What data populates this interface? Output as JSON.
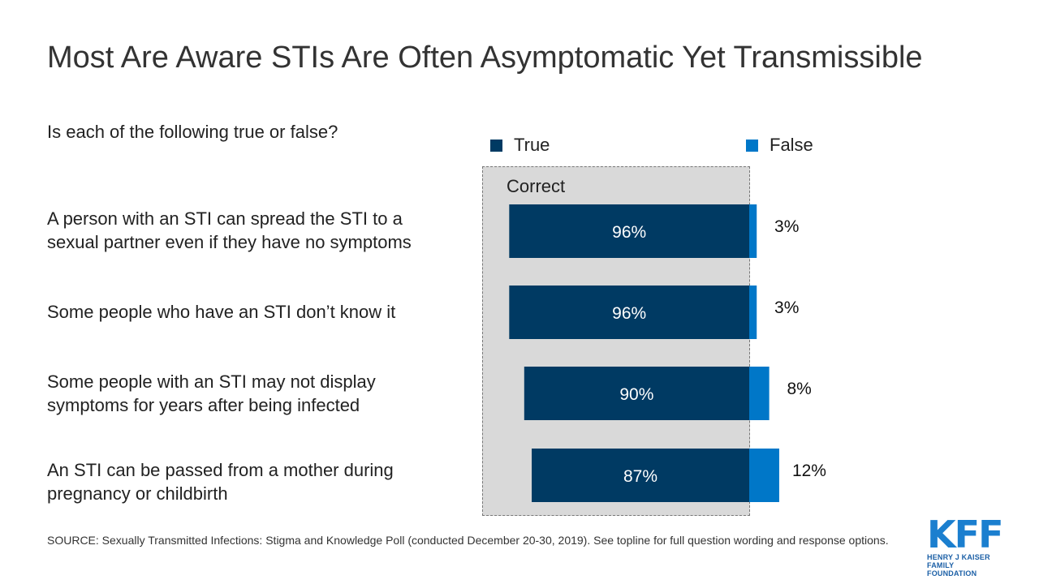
{
  "title": "Most Are Aware STIs Are Often Asymptomatic Yet Transmissible",
  "question": "Is each of the following true or false?",
  "correct_label": "Correct",
  "colors": {
    "true": "#003a63",
    "false": "#0077c8",
    "correct_bg": "#d9d9d9"
  },
  "chart_data": {
    "type": "bar",
    "orientation": "horizontal",
    "stacked": true,
    "categories": [
      "A person with an STI can spread the STI to a sexual partner even if they have no symptoms",
      "Some people who have an STI don’t know it",
      "Some people with an STI may not display symptoms for years after being infected",
      "An STI can be passed from a mother during pregnancy or childbirth"
    ],
    "category_lines": [
      [
        "A person with an STI can spread the STI to a",
        "sexual partner even if they have no symptoms"
      ],
      [
        "Some people who have an STI don’t know it"
      ],
      [
        "Some people with an STI may not display",
        "symptoms for years after being infected"
      ],
      [
        "An STI can be passed from a mother during",
        "pregnancy or childbirth"
      ]
    ],
    "series": [
      {
        "name": "True",
        "values": [
          96,
          96,
          90,
          87
        ],
        "labels": [
          "96%",
          "96%",
          "90%",
          "87%"
        ],
        "color": "#003a63"
      },
      {
        "name": "False",
        "values": [
          3,
          3,
          8,
          12
        ],
        "labels": [
          "3%",
          "3%",
          "8%",
          "12%"
        ],
        "color": "#0077c8"
      }
    ],
    "legend_position": "top",
    "grid": false
  },
  "source": "SOURCE: Sexually Transmitted Infections: Stigma and Knowledge Poll (conducted December 20-30, 2019). See topline for full question wording and response options.",
  "logo": {
    "mark": "KFF",
    "line1": "HENRY J KAISER",
    "line2": "FAMILY FOUNDATION"
  }
}
